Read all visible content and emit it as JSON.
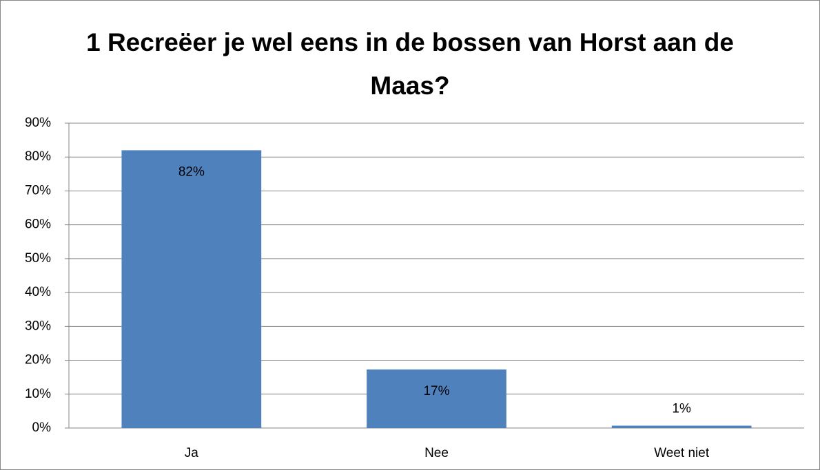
{
  "chart_data": {
    "type": "bar",
    "title": "1 Recreëer je wel eens in de bossen van Horst aan de Maas?",
    "categories": [
      "Ja",
      "Nee",
      "Weet niet"
    ],
    "values": [
      82,
      17.3,
      0.7
    ],
    "value_labels": [
      "82%",
      "17%",
      "1%"
    ],
    "color": "#4f81bd",
    "ylim": [
      0,
      90
    ],
    "yticks": [
      {
        "value": 0,
        "label": "0%"
      },
      {
        "value": 10,
        "label": "10%"
      },
      {
        "value": 20,
        "label": "20%"
      },
      {
        "value": 30,
        "label": "30%"
      },
      {
        "value": 40,
        "label": "40%"
      },
      {
        "value": 50,
        "label": "50%"
      },
      {
        "value": 60,
        "label": "60%"
      },
      {
        "value": 70,
        "label": "70%"
      },
      {
        "value": 80,
        "label": "80%"
      },
      {
        "value": 90,
        "label": "90%"
      }
    ],
    "grid": true
  }
}
